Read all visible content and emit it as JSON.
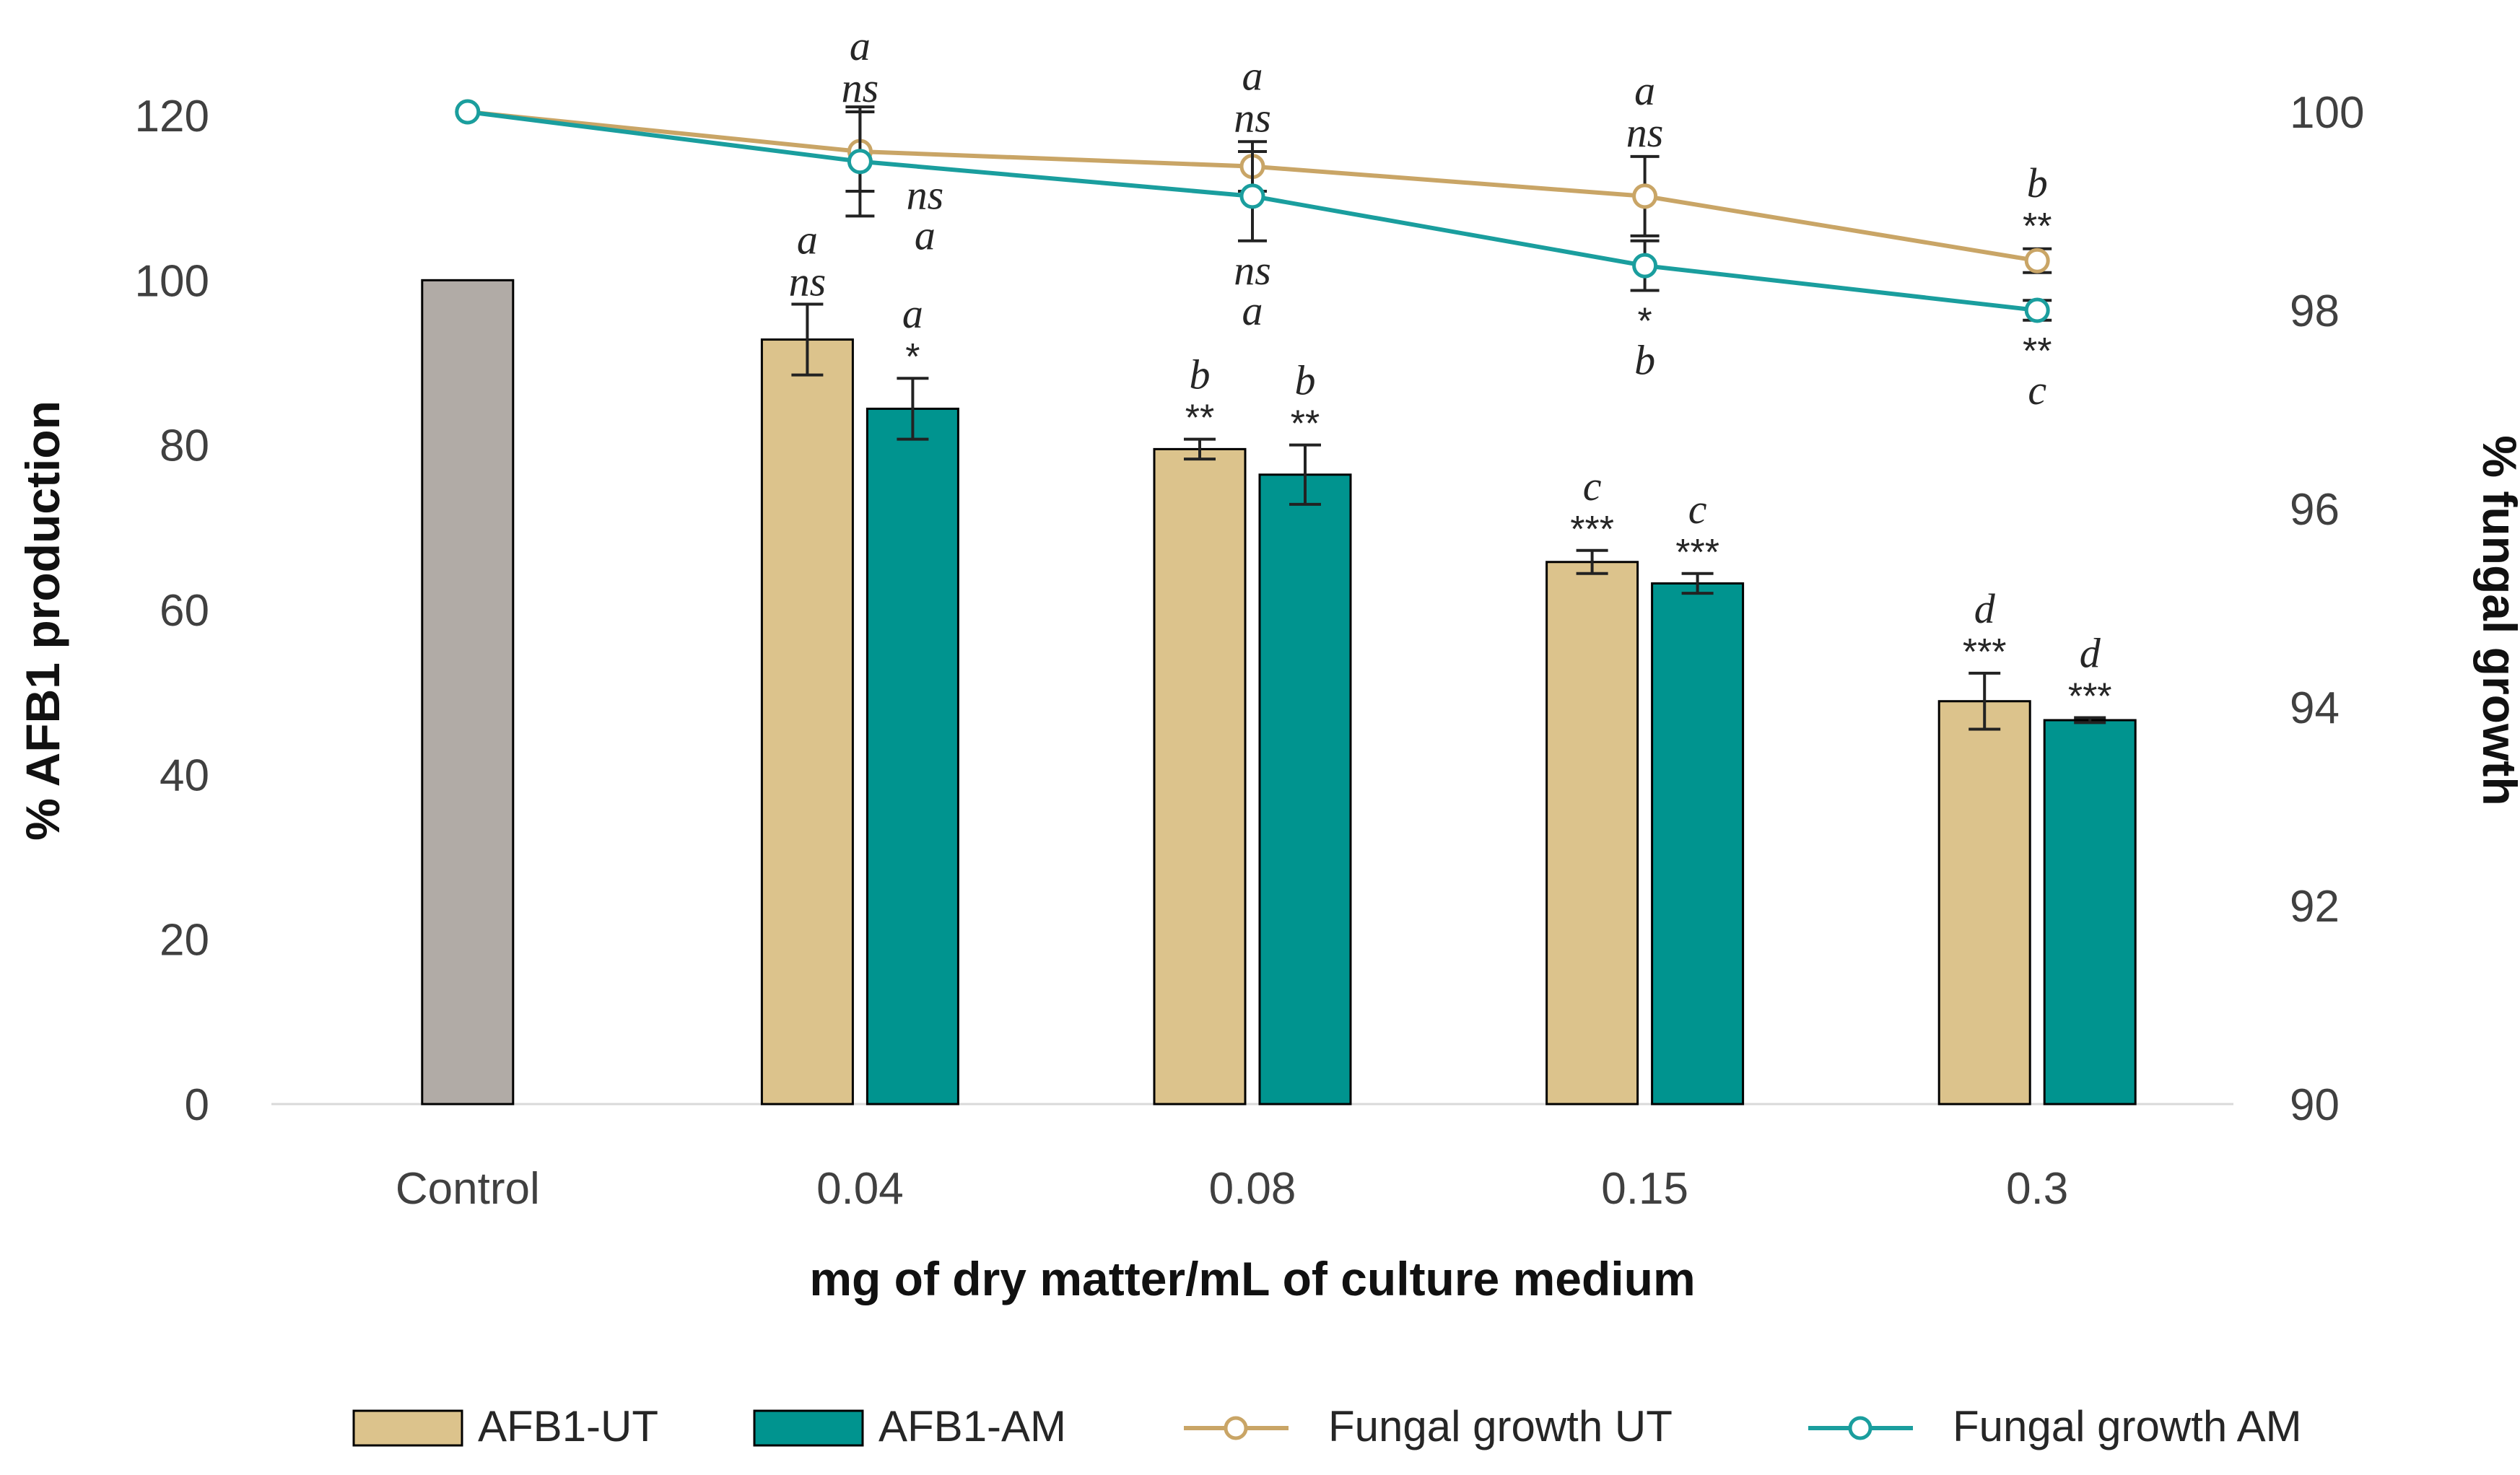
{
  "chart_data": {
    "type": "bar",
    "categories": [
      "Control",
      "0.04",
      "0.08",
      "0.15",
      "0.3"
    ],
    "xlabel": "mg of dry matter/mL of culture medium",
    "ylabel": "% AFB1 production",
    "y2label": "% fungal growth",
    "ylim": [
      0,
      120
    ],
    "yticks": [
      "0",
      "20",
      "40",
      "60",
      "80",
      "100",
      "120"
    ],
    "y2lim": [
      90,
      100
    ],
    "y2ticks": [
      "90",
      "92",
      "94",
      "96",
      "98",
      "100"
    ],
    "control_value": 100,
    "colors": {
      "control": "#b1aba6",
      "ut": "#dcc38c",
      "am": "#00948f",
      "line_ut": "#c9a566",
      "line_am": "#1a9e9e",
      "error": "#222222"
    },
    "bar_series": [
      {
        "name": "AFB1-UT",
        "values": [
          null,
          92.8,
          79.5,
          65.8,
          48.9
        ],
        "errors": [
          null,
          4.3,
          1.2,
          1.4,
          3.4
        ],
        "letters": [
          "",
          "a",
          "b",
          "c",
          "d"
        ],
        "stars": [
          "",
          "ns",
          "**",
          "***",
          "***"
        ]
      },
      {
        "name": "AFB1-AM",
        "values": [
          null,
          84.4,
          76.4,
          63.2,
          46.6
        ],
        "errors": [
          null,
          3.7,
          3.6,
          1.2,
          0.3
        ],
        "letters": [
          "",
          "a",
          "b",
          "c",
          "d"
        ],
        "stars": [
          "",
          "*",
          "**",
          "***",
          "***"
        ]
      }
    ],
    "line_series": [
      {
        "name": "Fungal growth UT",
        "values": [
          100,
          99.6,
          99.45,
          99.15,
          98.5
        ],
        "errors": [
          0,
          0.4,
          0.25,
          0.4,
          0.12
        ],
        "letters": [
          "",
          "a",
          "a",
          "a",
          "b"
        ],
        "stars": [
          "",
          "ns",
          "ns",
          "ns",
          "**"
        ]
      },
      {
        "name": "Fungal growth AM",
        "values": [
          100,
          99.5,
          99.15,
          98.45,
          98.0
        ],
        "errors": [
          0,
          0.55,
          0.45,
          0.25,
          0.1
        ],
        "letters": [
          "",
          "a",
          "a",
          "b",
          "c"
        ],
        "stars": [
          "",
          "ns",
          "ns",
          "*",
          "**"
        ]
      }
    ],
    "legend": [
      "AFB1-UT",
      "AFB1-AM",
      "Fungal growth UT",
      "Fungal growth AM"
    ],
    "legend_position": "bottom"
  }
}
